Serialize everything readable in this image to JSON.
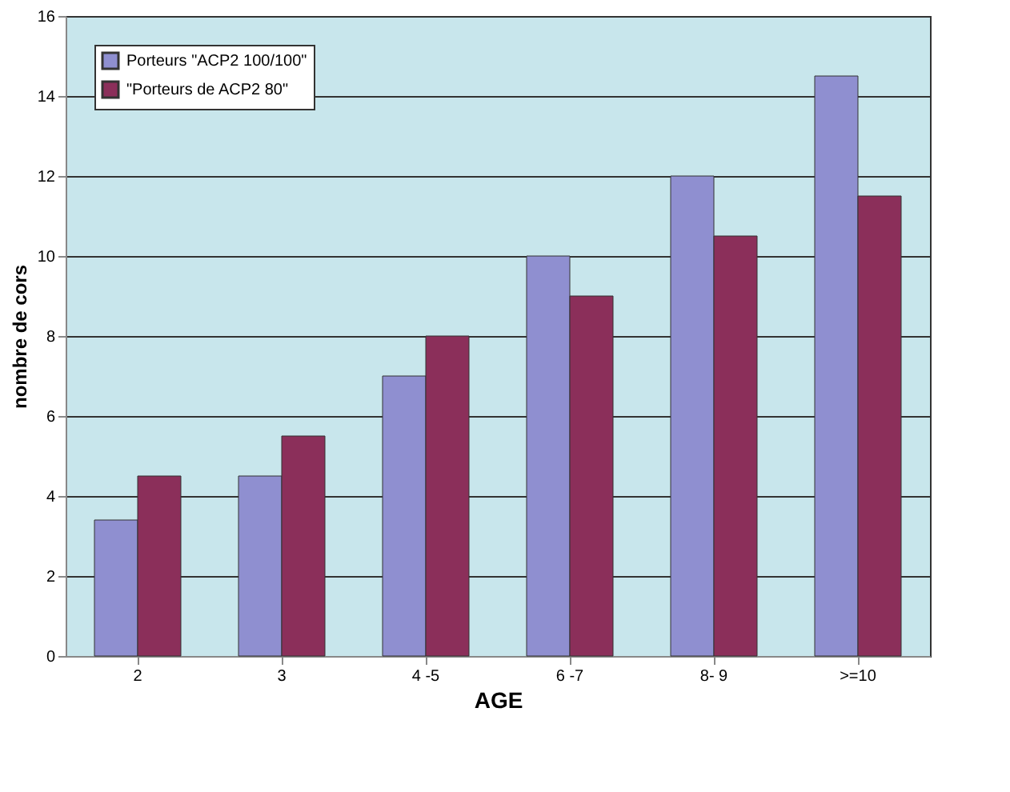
{
  "chart_data": {
    "type": "bar",
    "xlabel": "AGE",
    "ylabel": "nombre de cors",
    "categories": [
      "2",
      "3",
      "4 -5",
      "6 -7",
      "8- 9",
      ">=10"
    ],
    "series": [
      {
        "name": "Porteurs \"ACP2 100/100\"",
        "color": "#8f8fd0",
        "values": [
          3.4,
          4.5,
          7,
          10,
          12,
          14.5
        ]
      },
      {
        "name": "\"Porteurs de ACP2 80\"",
        "color": "#8b2f5a",
        "values": [
          4.5,
          5.5,
          8,
          9,
          10.5,
          11.5
        ]
      }
    ],
    "ylim": [
      0,
      16
    ],
    "yticks": [
      0,
      2,
      4,
      6,
      8,
      10,
      12,
      14,
      16
    ],
    "grid": "y",
    "legend": "top left"
  }
}
